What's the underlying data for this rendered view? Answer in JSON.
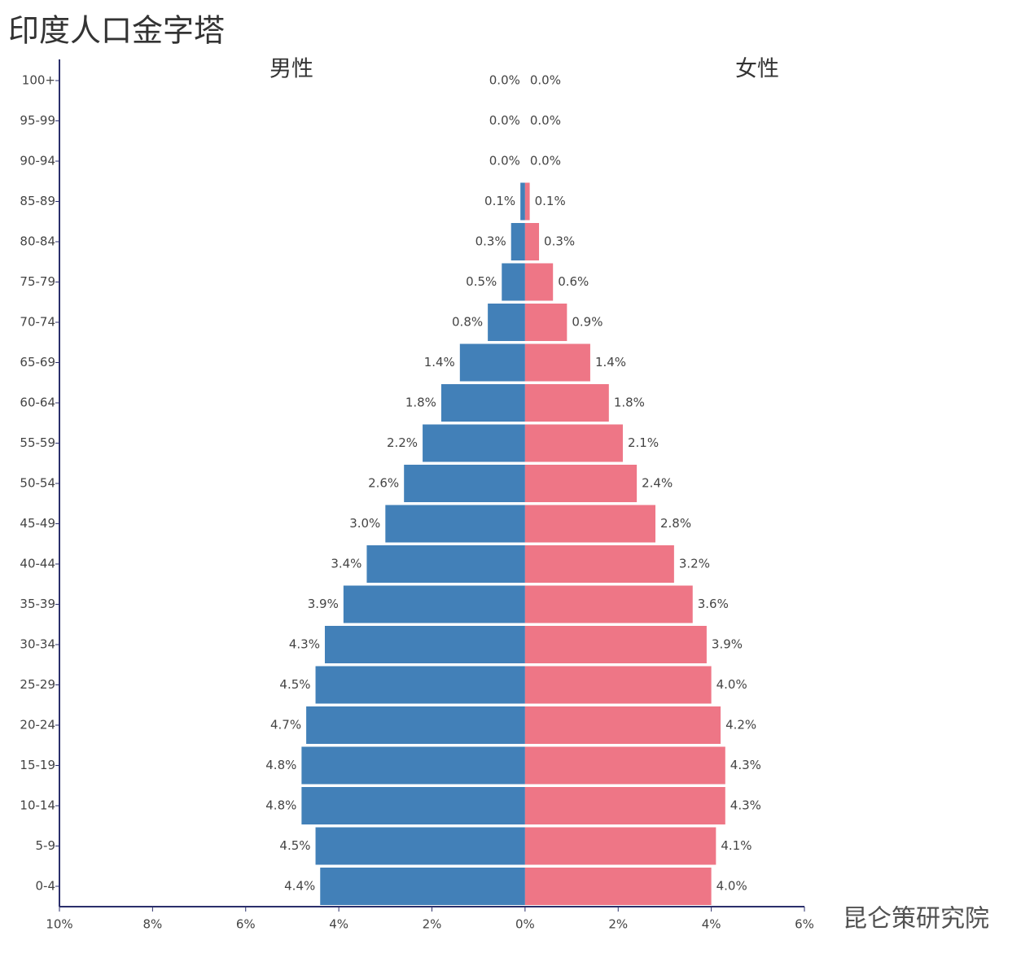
{
  "chart_data": {
    "type": "pyramid",
    "title": "印度人口金字塔",
    "categories": [
      "100+",
      "95-99",
      "90-94",
      "85-89",
      "80-84",
      "75-79",
      "70-74",
      "65-69",
      "60-64",
      "55-59",
      "50-54",
      "45-49",
      "40-44",
      "35-39",
      "30-34",
      "25-29",
      "20-24",
      "15-19",
      "10-14",
      "5-9",
      "0-4"
    ],
    "series": [
      {
        "name": "男性",
        "color": "#4280b8",
        "side": "left",
        "values": [
          0.0,
          0.0,
          0.0,
          0.1,
          0.3,
          0.5,
          0.8,
          1.4,
          1.8,
          2.2,
          2.6,
          3.0,
          3.4,
          3.9,
          4.3,
          4.5,
          4.7,
          4.8,
          4.8,
          4.5,
          4.4
        ],
        "value_labels": [
          "0.0%",
          "0.0%",
          "0.0%",
          "0.1%",
          "0.3%",
          "0.5%",
          "0.8%",
          "1.4%",
          "1.8%",
          "2.2%",
          "2.6%",
          "3.0%",
          "3.4%",
          "3.9%",
          "4.3%",
          "4.5%",
          "4.7%",
          "4.8%",
          "4.8%",
          "4.5%",
          "4.4%"
        ]
      },
      {
        "name": "女性",
        "color": "#ee7686",
        "side": "right",
        "values": [
          0.0,
          0.0,
          0.0,
          0.1,
          0.3,
          0.6,
          0.9,
          1.4,
          1.8,
          2.1,
          2.4,
          2.8,
          3.2,
          3.6,
          3.9,
          4.0,
          4.2,
          4.3,
          4.3,
          4.1,
          4.0
        ],
        "value_labels": [
          "0.0%",
          "0.0%",
          "0.0%",
          "0.1%",
          "0.3%",
          "0.6%",
          "0.9%",
          "1.4%",
          "1.8%",
          "2.1%",
          "2.4%",
          "2.8%",
          "3.2%",
          "3.6%",
          "3.9%",
          "4.0%",
          "4.2%",
          "4.3%",
          "4.3%",
          "4.1%",
          "4.0%"
        ]
      }
    ],
    "xlim": [
      -10,
      6
    ],
    "xticks": [
      {
        "value": -10,
        "label": "10%"
      },
      {
        "value": -8,
        "label": "8%"
      },
      {
        "value": -6,
        "label": "6%"
      },
      {
        "value": -4,
        "label": "4%"
      },
      {
        "value": -2,
        "label": "2%"
      },
      {
        "value": 0,
        "label": "0%"
      },
      {
        "value": 2,
        "label": "2%"
      },
      {
        "value": 4,
        "label": "4%"
      },
      {
        "value": 6,
        "label": "6%"
      }
    ],
    "watermark": "昆仑策研究院"
  }
}
